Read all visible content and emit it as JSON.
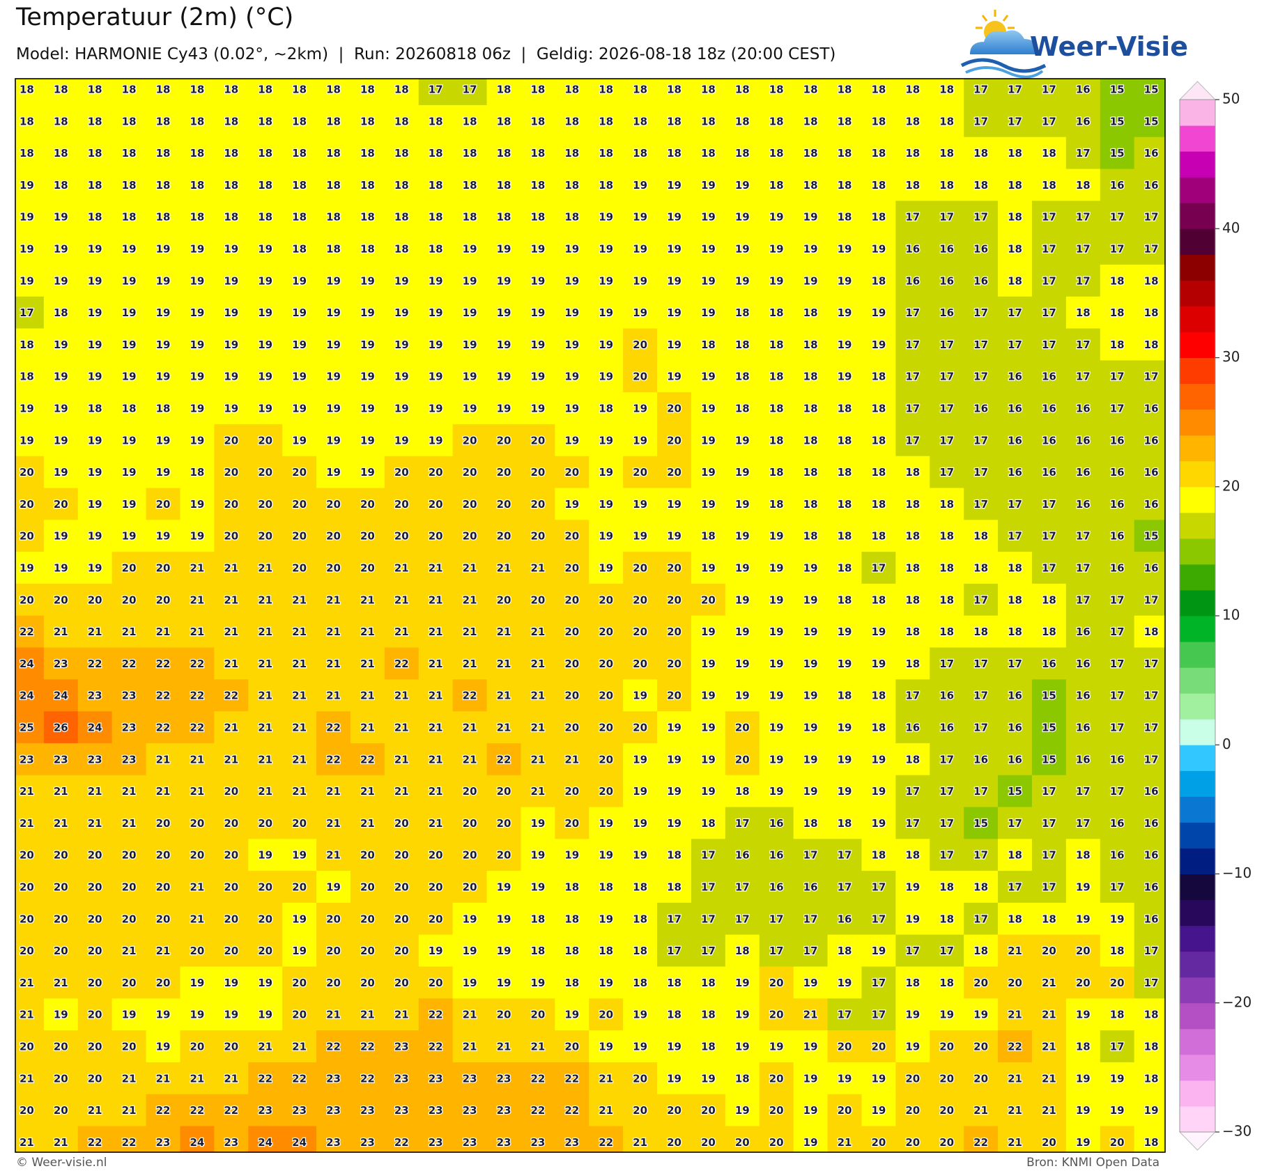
{
  "header": {
    "title": "Temperatuur (2m) (°C)",
    "subtitle": "Model: HARMONIE Cy43 (0.02°, ~2km)  |  Run: 20260818 06z  |  Geldig: 2026-08-18 18z (20:00 CEST)"
  },
  "logo": {
    "text": "Weer-Visie"
  },
  "map": {
    "rows": [
      [
        18,
        18,
        18,
        18,
        18,
        18,
        18,
        18,
        18,
        18,
        18,
        18,
        17,
        17,
        18,
        18,
        18,
        18,
        18,
        18,
        18,
        18,
        18,
        18,
        18,
        18,
        18,
        18,
        17,
        17,
        17,
        16,
        15,
        15
      ],
      [
        18,
        18,
        18,
        18,
        18,
        18,
        18,
        18,
        18,
        18,
        18,
        18,
        18,
        18,
        18,
        18,
        18,
        18,
        18,
        18,
        18,
        18,
        18,
        18,
        18,
        18,
        18,
        18,
        17,
        17,
        17,
        16,
        15,
        15
      ],
      [
        18,
        18,
        18,
        18,
        18,
        18,
        18,
        18,
        18,
        18,
        18,
        18,
        18,
        18,
        18,
        18,
        18,
        18,
        18,
        18,
        18,
        18,
        18,
        18,
        18,
        18,
        18,
        18,
        18,
        18,
        18,
        17,
        15,
        16
      ],
      [
        19,
        18,
        18,
        18,
        18,
        18,
        18,
        18,
        18,
        18,
        18,
        18,
        18,
        18,
        18,
        18,
        18,
        18,
        19,
        19,
        19,
        19,
        18,
        18,
        18,
        18,
        18,
        18,
        18,
        18,
        18,
        18,
        16,
        16
      ],
      [
        19,
        19,
        18,
        18,
        18,
        18,
        18,
        18,
        18,
        18,
        18,
        18,
        18,
        18,
        18,
        18,
        18,
        19,
        19,
        19,
        19,
        19,
        19,
        19,
        18,
        18,
        17,
        17,
        17,
        18,
        17,
        17,
        17,
        17
      ],
      [
        19,
        19,
        19,
        19,
        19,
        19,
        19,
        19,
        18,
        18,
        18,
        18,
        18,
        19,
        19,
        19,
        19,
        19,
        19,
        19,
        19,
        19,
        19,
        19,
        19,
        19,
        16,
        16,
        16,
        18,
        17,
        17,
        17,
        17
      ],
      [
        19,
        19,
        19,
        19,
        19,
        19,
        19,
        19,
        19,
        19,
        19,
        19,
        19,
        19,
        19,
        19,
        19,
        19,
        19,
        19,
        19,
        19,
        19,
        19,
        19,
        18,
        16,
        16,
        16,
        18,
        17,
        17,
        18,
        18
      ],
      [
        17,
        18,
        19,
        19,
        19,
        19,
        19,
        19,
        19,
        19,
        19,
        19,
        19,
        19,
        19,
        19,
        19,
        19,
        19,
        19,
        19,
        18,
        18,
        18,
        19,
        19,
        17,
        16,
        17,
        17,
        17,
        18,
        18,
        18
      ],
      [
        18,
        19,
        19,
        19,
        19,
        19,
        19,
        19,
        19,
        19,
        19,
        19,
        19,
        19,
        19,
        19,
        19,
        19,
        20,
        19,
        18,
        18,
        18,
        18,
        19,
        19,
        17,
        17,
        17,
        17,
        17,
        17,
        18,
        18
      ],
      [
        18,
        19,
        19,
        19,
        19,
        19,
        19,
        19,
        19,
        19,
        19,
        19,
        19,
        19,
        19,
        19,
        19,
        19,
        20,
        19,
        19,
        18,
        18,
        18,
        19,
        18,
        17,
        17,
        17,
        16,
        16,
        17,
        17,
        17
      ],
      [
        19,
        19,
        18,
        18,
        18,
        19,
        19,
        19,
        19,
        19,
        19,
        19,
        19,
        19,
        19,
        19,
        19,
        18,
        19,
        20,
        19,
        18,
        18,
        18,
        18,
        18,
        17,
        17,
        16,
        16,
        16,
        16,
        17,
        16
      ],
      [
        19,
        19,
        19,
        19,
        19,
        19,
        20,
        20,
        19,
        19,
        19,
        19,
        19,
        20,
        20,
        20,
        19,
        19,
        19,
        20,
        19,
        19,
        18,
        18,
        18,
        18,
        17,
        17,
        17,
        16,
        16,
        16,
        16,
        16
      ],
      [
        20,
        19,
        19,
        19,
        19,
        18,
        20,
        20,
        20,
        19,
        19,
        20,
        20,
        20,
        20,
        20,
        20,
        19,
        20,
        20,
        19,
        19,
        18,
        18,
        18,
        18,
        18,
        17,
        17,
        16,
        16,
        16,
        16,
        16
      ],
      [
        20,
        20,
        19,
        19,
        20,
        19,
        20,
        20,
        20,
        20,
        20,
        20,
        20,
        20,
        20,
        20,
        19,
        19,
        19,
        19,
        19,
        19,
        18,
        18,
        18,
        18,
        18,
        18,
        17,
        17,
        17,
        16,
        16,
        16
      ],
      [
        20,
        19,
        19,
        19,
        19,
        19,
        20,
        20,
        20,
        20,
        20,
        20,
        20,
        20,
        20,
        20,
        20,
        19,
        19,
        19,
        18,
        19,
        19,
        18,
        18,
        18,
        18,
        18,
        18,
        17,
        17,
        17,
        16,
        15
      ],
      [
        19,
        19,
        19,
        20,
        20,
        21,
        21,
        21,
        20,
        20,
        20,
        21,
        21,
        21,
        21,
        21,
        20,
        19,
        20,
        20,
        19,
        19,
        19,
        19,
        18,
        17,
        18,
        18,
        18,
        18,
        17,
        17,
        16,
        16
      ],
      [
        20,
        20,
        20,
        20,
        20,
        21,
        21,
        21,
        21,
        21,
        21,
        21,
        21,
        21,
        20,
        20,
        20,
        20,
        20,
        20,
        20,
        19,
        19,
        19,
        18,
        18,
        18,
        18,
        17,
        18,
        18,
        17,
        17,
        17
      ],
      [
        22,
        21,
        21,
        21,
        21,
        21,
        21,
        21,
        21,
        21,
        21,
        21,
        21,
        21,
        21,
        21,
        20,
        20,
        20,
        20,
        19,
        19,
        19,
        19,
        19,
        19,
        18,
        18,
        18,
        18,
        18,
        16,
        17,
        18
      ],
      [
        24,
        23,
        22,
        22,
        22,
        22,
        21,
        21,
        21,
        21,
        21,
        22,
        21,
        21,
        21,
        21,
        20,
        20,
        20,
        20,
        19,
        19,
        19,
        19,
        19,
        19,
        18,
        17,
        17,
        17,
        16,
        16,
        17,
        17
      ],
      [
        24,
        24,
        23,
        23,
        22,
        22,
        22,
        21,
        21,
        21,
        21,
        21,
        21,
        22,
        21,
        21,
        20,
        20,
        19,
        20,
        19,
        19,
        19,
        19,
        18,
        18,
        17,
        16,
        17,
        16,
        15,
        16,
        17,
        17
      ],
      [
        25,
        26,
        24,
        23,
        22,
        22,
        21,
        21,
        21,
        22,
        21,
        21,
        21,
        21,
        21,
        21,
        20,
        20,
        20,
        19,
        19,
        20,
        19,
        19,
        19,
        18,
        16,
        16,
        17,
        16,
        15,
        16,
        17,
        17
      ],
      [
        23,
        23,
        23,
        23,
        21,
        21,
        21,
        21,
        21,
        22,
        22,
        21,
        21,
        21,
        22,
        21,
        21,
        20,
        19,
        19,
        19,
        20,
        19,
        19,
        19,
        19,
        18,
        17,
        16,
        16,
        15,
        16,
        16,
        17
      ],
      [
        21,
        21,
        21,
        21,
        21,
        21,
        20,
        21,
        21,
        21,
        21,
        21,
        21,
        20,
        20,
        21,
        20,
        20,
        19,
        19,
        19,
        18,
        19,
        19,
        19,
        19,
        17,
        17,
        17,
        15,
        17,
        17,
        17,
        16
      ],
      [
        21,
        21,
        21,
        21,
        20,
        20,
        20,
        20,
        20,
        21,
        21,
        20,
        21,
        20,
        20,
        19,
        20,
        19,
        19,
        19,
        18,
        17,
        16,
        18,
        18,
        19,
        17,
        17,
        15,
        17,
        17,
        17,
        16,
        16
      ],
      [
        20,
        20,
        20,
        20,
        20,
        20,
        20,
        19,
        19,
        21,
        20,
        20,
        20,
        20,
        20,
        19,
        19,
        19,
        19,
        18,
        17,
        16,
        16,
        17,
        17,
        18,
        18,
        17,
        17,
        18,
        17,
        18,
        16,
        16
      ],
      [
        20,
        20,
        20,
        20,
        20,
        21,
        20,
        20,
        20,
        19,
        20,
        20,
        20,
        20,
        19,
        19,
        18,
        18,
        18,
        18,
        17,
        17,
        16,
        16,
        17,
        17,
        19,
        18,
        18,
        17,
        17,
        19,
        17,
        16
      ],
      [
        20,
        20,
        20,
        20,
        20,
        21,
        20,
        20,
        19,
        20,
        20,
        20,
        20,
        19,
        19,
        18,
        18,
        19,
        18,
        17,
        17,
        17,
        17,
        17,
        16,
        17,
        19,
        18,
        17,
        18,
        18,
        19,
        19,
        16
      ],
      [
        20,
        20,
        20,
        21,
        21,
        20,
        20,
        20,
        19,
        20,
        20,
        20,
        19,
        19,
        19,
        18,
        18,
        18,
        18,
        17,
        17,
        18,
        17,
        17,
        18,
        19,
        17,
        17,
        18,
        21,
        20,
        20,
        18,
        17
      ],
      [
        21,
        21,
        20,
        20,
        20,
        19,
        19,
        19,
        20,
        20,
        20,
        20,
        20,
        19,
        19,
        19,
        18,
        19,
        18,
        18,
        18,
        19,
        20,
        19,
        19,
        17,
        18,
        18,
        20,
        20,
        21,
        20,
        20,
        17
      ],
      [
        21,
        19,
        20,
        19,
        19,
        19,
        19,
        19,
        20,
        21,
        21,
        21,
        22,
        21,
        20,
        20,
        19,
        20,
        19,
        18,
        18,
        19,
        20,
        21,
        17,
        17,
        19,
        19,
        19,
        21,
        21,
        19,
        18,
        18
      ],
      [
        20,
        20,
        20,
        20,
        19,
        20,
        20,
        21,
        21,
        22,
        22,
        23,
        22,
        21,
        21,
        21,
        20,
        19,
        19,
        19,
        18,
        19,
        19,
        19,
        20,
        20,
        19,
        20,
        20,
        22,
        21,
        18,
        17,
        18
      ],
      [
        21,
        20,
        20,
        21,
        21,
        21,
        21,
        22,
        22,
        23,
        22,
        23,
        23,
        23,
        23,
        22,
        22,
        21,
        20,
        19,
        19,
        18,
        20,
        19,
        19,
        19,
        20,
        20,
        20,
        21,
        21,
        19,
        19,
        18
      ],
      [
        20,
        20,
        21,
        21,
        22,
        22,
        22,
        23,
        23,
        23,
        23,
        23,
        23,
        23,
        23,
        22,
        22,
        21,
        20,
        20,
        20,
        19,
        20,
        19,
        20,
        19,
        20,
        20,
        21,
        21,
        21,
        19,
        19,
        19
      ],
      [
        21,
        21,
        22,
        22,
        23,
        24,
        23,
        24,
        24,
        23,
        23,
        22,
        23,
        23,
        23,
        23,
        23,
        22,
        21,
        20,
        20,
        20,
        20,
        19,
        21,
        20,
        20,
        20,
        22,
        21,
        20,
        19,
        20,
        18
      ]
    ]
  },
  "colorbar": {
    "range": [
      -30,
      50
    ],
    "ticks": [
      50,
      40,
      30,
      20,
      10,
      0,
      {
        "value": -10,
        "label": "−10"
      },
      {
        "value": -20,
        "label": "−20"
      },
      {
        "value": -30,
        "label": "−30"
      }
    ],
    "colors": [
      "#ffd4f7",
      "#fcb4f0",
      "#e68ce6",
      "#d26ed7",
      "#b450c3",
      "#8c3cb4",
      "#6428a0",
      "#46148c",
      "#28085a",
      "#14083c",
      "#001e82",
      "#0046aa",
      "#0a78d2",
      "#00a0e6",
      "#32c8ff",
      "#c8ffe6",
      "#a0f0a0",
      "#78dc78",
      "#46c850",
      "#00b428",
      "#009614",
      "#3caa00",
      "#8cc800",
      "#c8d700",
      "#ffff00",
      "#ffd700",
      "#ffb400",
      "#ff8c00",
      "#ff6400",
      "#ff3c00",
      "#ff0000",
      "#dc0000",
      "#b40000",
      "#8c0000",
      "#500032",
      "#780050",
      "#a0007a",
      "#c800b4",
      "#f046d2",
      "#fab4e6"
    ]
  },
  "footer": {
    "left": "© Weer-visie.nl",
    "right": "Bron: KNMI Open Data"
  }
}
